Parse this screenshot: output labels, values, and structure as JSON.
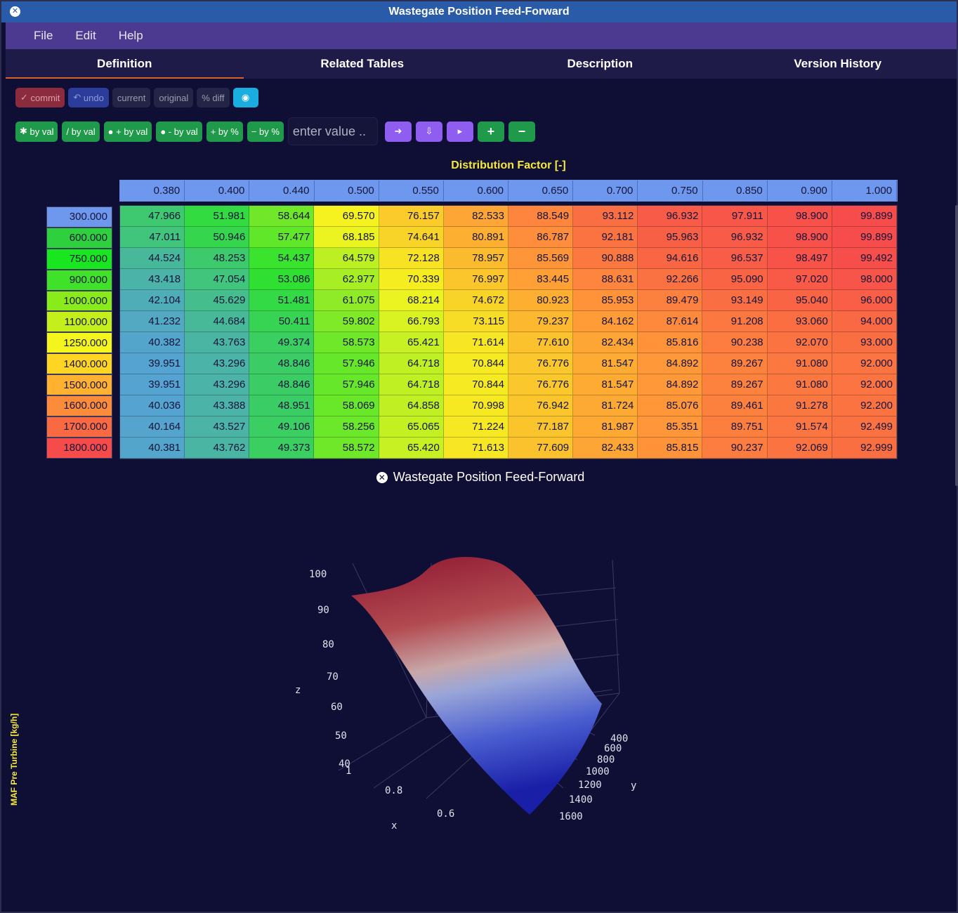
{
  "window": {
    "title": "Wastegate Position Feed-Forward"
  },
  "menu": [
    "File",
    "Edit",
    "Help"
  ],
  "tabs": [
    {
      "label": "Definition",
      "active": true
    },
    {
      "label": "Related Tables",
      "active": false
    },
    {
      "label": "Description",
      "active": false
    },
    {
      "label": "Version History",
      "active": false
    }
  ],
  "toolbar1": {
    "commit": "commit",
    "undo": "undo",
    "current": "current",
    "original": "original",
    "pct_diff": "% diff"
  },
  "toolbar2": {
    "mult_by_val": "by val",
    "div_by_val": "/ by val",
    "add_by_val": "+ by val",
    "sub_by_val": "- by val",
    "add_by_pct": "+ by %",
    "sub_by_pct": "− by %",
    "input_placeholder": "enter value .."
  },
  "table": {
    "x_axis_title": "Distribution Factor [-]",
    "y_axis_title": "MAF Pre Turbine [kg/h]",
    "columns": [
      "0.380",
      "0.400",
      "0.440",
      "0.500",
      "0.550",
      "0.600",
      "0.650",
      "0.700",
      "0.750",
      "0.850",
      "0.900",
      "1.000"
    ],
    "rows": [
      "300.000",
      "600.000",
      "750.000",
      "900.000",
      "1000.000",
      "1100.000",
      "1250.000",
      "1400.000",
      "1500.000",
      "1600.000",
      "1700.000",
      "1800.000"
    ],
    "values": [
      [
        "47.966",
        "51.981",
        "58.644",
        "69.570",
        "76.157",
        "82.533",
        "88.549",
        "93.112",
        "96.932",
        "97.911",
        "98.900",
        "99.899"
      ],
      [
        "47.011",
        "50.946",
        "57.477",
        "68.185",
        "74.641",
        "80.891",
        "86.787",
        "92.181",
        "95.963",
        "96.932",
        "98.900",
        "99.899"
      ],
      [
        "44.524",
        "48.253",
        "54.437",
        "64.579",
        "72.128",
        "78.957",
        "85.569",
        "90.888",
        "94.616",
        "96.537",
        "98.497",
        "99.492"
      ],
      [
        "43.418",
        "47.054",
        "53.086",
        "62.977",
        "70.339",
        "76.997",
        "83.445",
        "88.631",
        "92.266",
        "95.090",
        "97.020",
        "98.000"
      ],
      [
        "42.104",
        "45.629",
        "51.481",
        "61.075",
        "68.214",
        "74.672",
        "80.923",
        "85.953",
        "89.479",
        "93.149",
        "95.040",
        "96.000"
      ],
      [
        "41.232",
        "44.684",
        "50.411",
        "59.802",
        "66.793",
        "73.115",
        "79.237",
        "84.162",
        "87.614",
        "91.208",
        "93.060",
        "94.000"
      ],
      [
        "40.382",
        "43.763",
        "49.374",
        "58.573",
        "65.421",
        "71.614",
        "77.610",
        "82.434",
        "85.816",
        "90.238",
        "92.070",
        "93.000"
      ],
      [
        "39.951",
        "43.296",
        "48.846",
        "57.946",
        "64.718",
        "70.844",
        "76.776",
        "81.547",
        "84.892",
        "89.267",
        "91.080",
        "92.000"
      ],
      [
        "39.951",
        "43.296",
        "48.846",
        "57.946",
        "64.718",
        "70.844",
        "76.776",
        "81.547",
        "84.892",
        "89.267",
        "91.080",
        "92.000"
      ],
      [
        "40.036",
        "43.388",
        "48.951",
        "58.069",
        "64.858",
        "70.998",
        "76.942",
        "81.724",
        "85.076",
        "89.461",
        "91.278",
        "92.200"
      ],
      [
        "40.164",
        "43.527",
        "49.106",
        "58.256",
        "65.065",
        "71.224",
        "77.187",
        "81.987",
        "85.351",
        "89.751",
        "91.574",
        "92.499"
      ],
      [
        "40.381",
        "43.762",
        "49.373",
        "58.572",
        "65.420",
        "71.613",
        "77.609",
        "82.433",
        "85.815",
        "90.237",
        "92.069",
        "92.999"
      ]
    ],
    "colors": {
      "value_stops": [
        "#5b9ae8",
        "#2ee22e",
        "#f5f51f",
        "#ff9a38",
        "#f64b4b"
      ],
      "row_header": [
        "#6e98ee",
        "#2ed13d",
        "#18e61f",
        "#3fe228",
        "#8aeb1b",
        "#c5ef1a",
        "#f3f51c",
        "#ffd524",
        "#ffb12f",
        "#fd8c3a",
        "#fa6a42",
        "#f64b4b"
      ]
    }
  },
  "plot": {
    "title": "Wastegate Position Feed-Forward",
    "z_label": "z",
    "x_label": "x",
    "y_label": "y",
    "z_ticks": [
      "100",
      "90",
      "80",
      "70",
      "60",
      "50",
      "40"
    ],
    "x_ticks": [
      "1",
      "0.8",
      "0.6"
    ],
    "y_ticks": [
      "400",
      "600",
      "800",
      "1000",
      "1200",
      "1400",
      "1600"
    ]
  }
}
